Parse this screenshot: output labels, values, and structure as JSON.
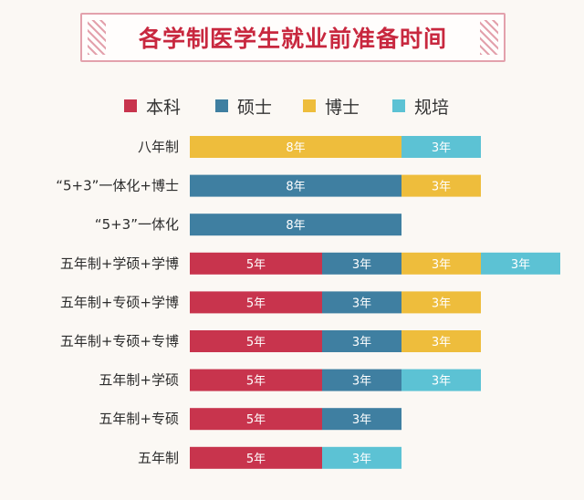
{
  "title": "各学制医学生就业前准备时间",
  "colors": {
    "本科": "#c8344d",
    "硕士": "#3f7fa1",
    "博士": "#eebd3c",
    "规培": "#5cc2d4",
    "title": "#c8283f"
  },
  "chart_data": {
    "type": "bar",
    "orientation": "horizontal",
    "stacked": true,
    "title": "各学制医学生就业前准备时间",
    "legend": [
      "本科",
      "硕士",
      "博士",
      "规培"
    ],
    "legend_position": "top",
    "rows": [
      {
        "label": "八年制",
        "segments": [
          {
            "series": "博士",
            "value": 8,
            "text": "8年"
          },
          {
            "series": "规培",
            "value": 3,
            "text": "3年"
          }
        ]
      },
      {
        "label": "“5+3”一体化+博士",
        "segments": [
          {
            "series": "硕士",
            "value": 8,
            "text": "8年"
          },
          {
            "series": "博士",
            "value": 3,
            "text": "3年"
          }
        ]
      },
      {
        "label": "“5+3”一体化",
        "segments": [
          {
            "series": "硕士",
            "value": 8,
            "text": "8年"
          }
        ]
      },
      {
        "label": "五年制+学硕+学博",
        "segments": [
          {
            "series": "本科",
            "value": 5,
            "text": "5年"
          },
          {
            "series": "硕士",
            "value": 3,
            "text": "3年"
          },
          {
            "series": "博士",
            "value": 3,
            "text": "3年"
          },
          {
            "series": "规培",
            "value": 3,
            "text": "3年"
          }
        ]
      },
      {
        "label": "五年制+专硕+学博",
        "segments": [
          {
            "series": "本科",
            "value": 5,
            "text": "5年"
          },
          {
            "series": "硕士",
            "value": 3,
            "text": "3年"
          },
          {
            "series": "博士",
            "value": 3,
            "text": "3年"
          }
        ]
      },
      {
        "label": "五年制+专硕+专博",
        "segments": [
          {
            "series": "本科",
            "value": 5,
            "text": "5年"
          },
          {
            "series": "硕士",
            "value": 3,
            "text": "3年"
          },
          {
            "series": "博士",
            "value": 3,
            "text": "3年"
          }
        ]
      },
      {
        "label": "五年制+学硕",
        "segments": [
          {
            "series": "本科",
            "value": 5,
            "text": "5年"
          },
          {
            "series": "硕士",
            "value": 3,
            "text": "3年"
          },
          {
            "series": "规培",
            "value": 3,
            "text": "3年"
          }
        ]
      },
      {
        "label": "五年制+专硕",
        "segments": [
          {
            "series": "本科",
            "value": 5,
            "text": "5年"
          },
          {
            "series": "硕士",
            "value": 3,
            "text": "3年"
          }
        ]
      },
      {
        "label": "五年制",
        "segments": [
          {
            "series": "本科",
            "value": 5,
            "text": "5年"
          },
          {
            "series": "规培",
            "value": 3,
            "text": "3年"
          }
        ]
      }
    ]
  }
}
